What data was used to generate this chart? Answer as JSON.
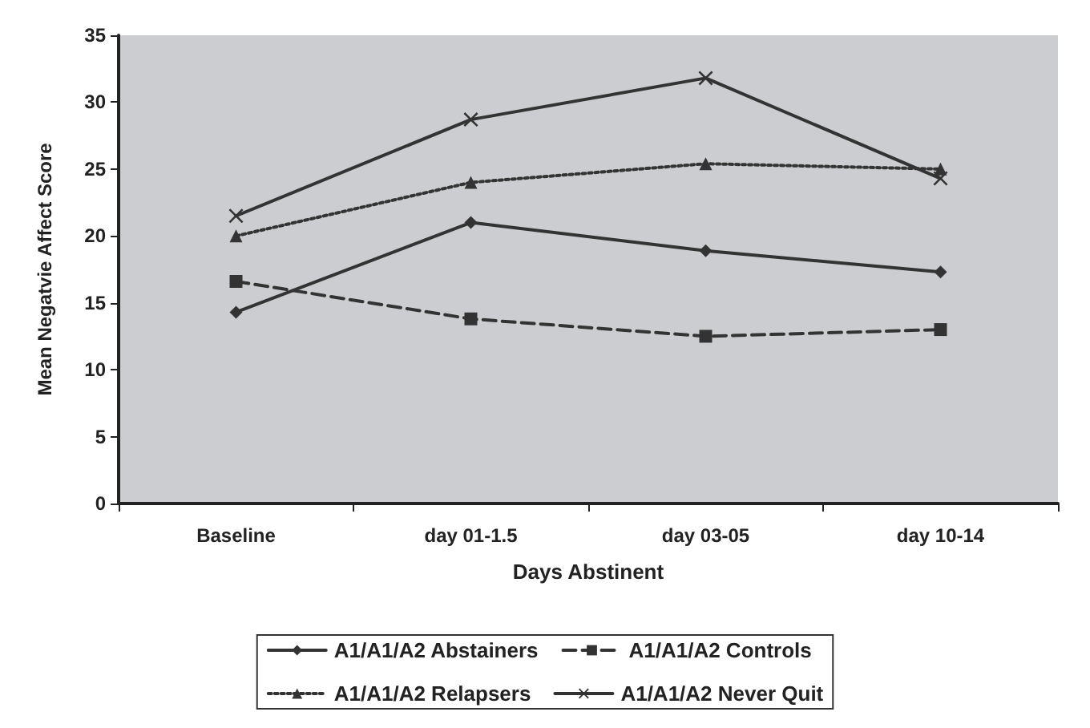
{
  "chart_data": {
    "type": "line",
    "xlabel": "Days Abstinent",
    "ylabel": "Mean Negatvie Affect Score",
    "categories": [
      "Baseline",
      "day 01-1.5",
      "day 03-05",
      "day 10-14"
    ],
    "ylim": [
      0,
      35
    ],
    "yticks": [
      0,
      5,
      10,
      15,
      20,
      25,
      30,
      35
    ],
    "grid": false,
    "legend": "bottom",
    "series": [
      {
        "name": "A1/A1/A2 Abstainers",
        "color": "#333333",
        "marker": "diamond",
        "line_style": "solid",
        "values": [
          14.3,
          21.0,
          18.9,
          17.3
        ]
      },
      {
        "name": "A1/A1/A2 Controls",
        "color": "#333333",
        "marker": "square",
        "line_style": "dashed",
        "values": [
          16.6,
          13.8,
          12.5,
          13.0
        ]
      },
      {
        "name": "A1/A1/A2 Relapsers",
        "color": "#333333",
        "marker": "triangle",
        "line_style": "dotted",
        "values": [
          20.0,
          24.0,
          25.4,
          25.0
        ]
      },
      {
        "name": "A1/A1/A2 Never Quit",
        "color": "#333333",
        "marker": "cross",
        "line_style": "solid",
        "values": [
          21.5,
          28.7,
          31.8,
          24.3
        ]
      }
    ]
  }
}
